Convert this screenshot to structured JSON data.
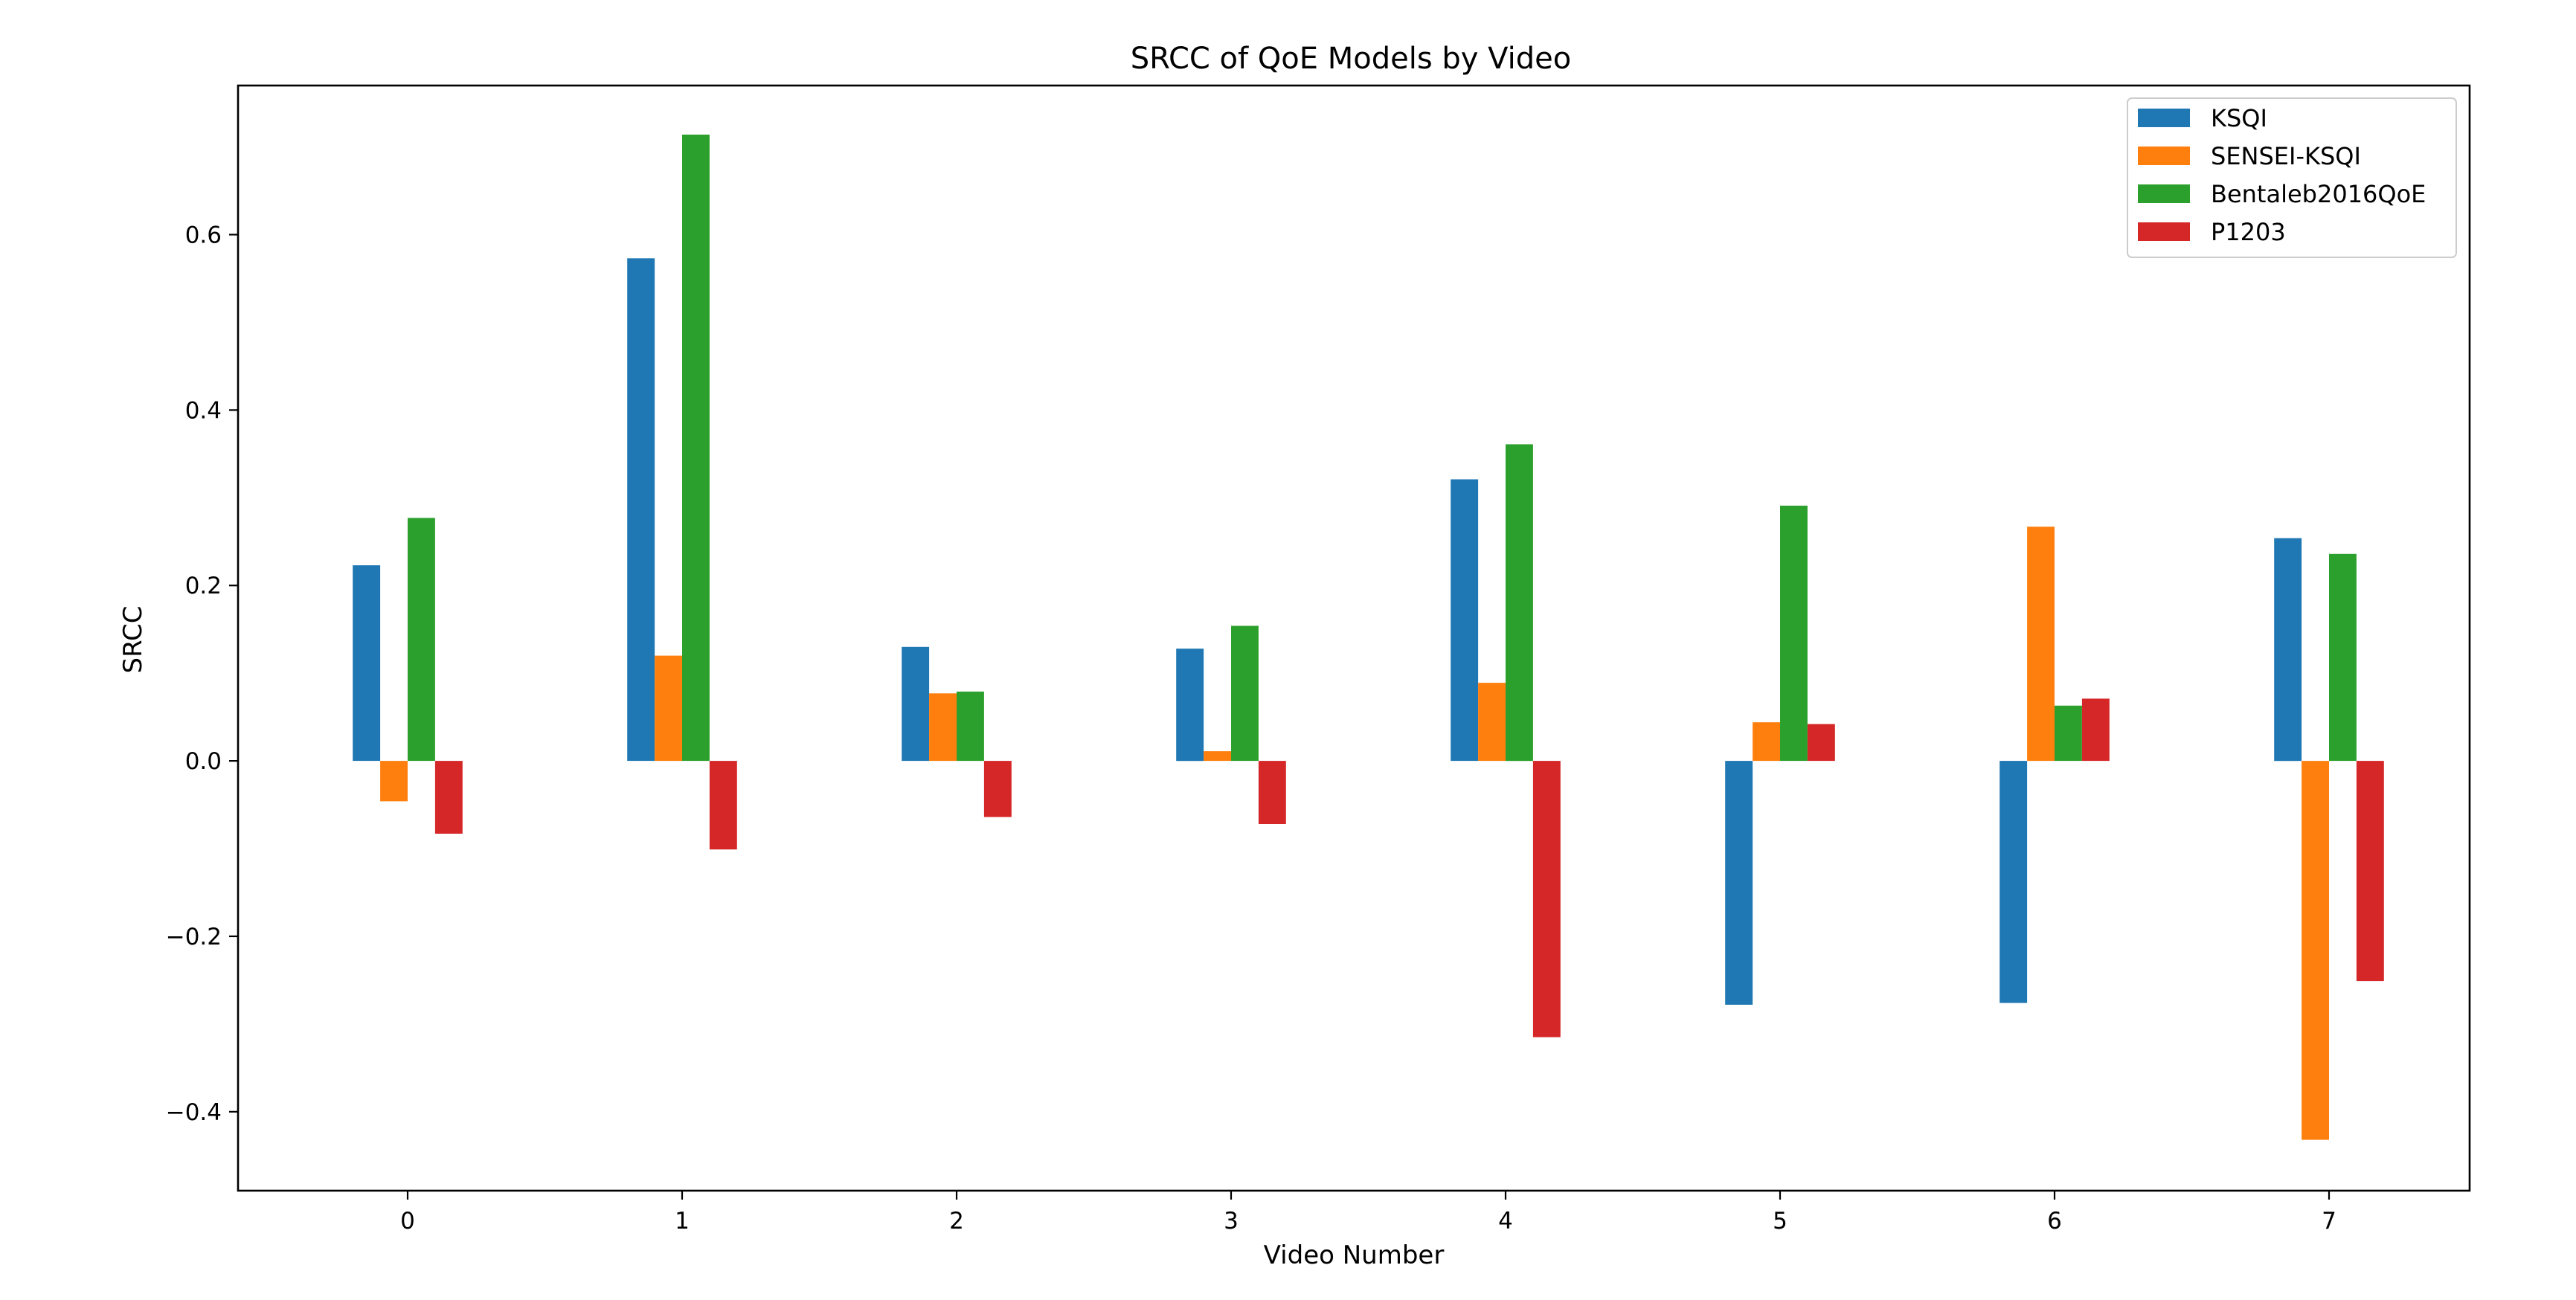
{
  "chart_data": {
    "type": "bar",
    "title": "SRCC of QoE Models by Video",
    "xlabel": "Video Number",
    "ylabel": "SRCC",
    "categories": [
      "0",
      "1",
      "2",
      "3",
      "4",
      "5",
      "6",
      "7"
    ],
    "ylim": [
      -0.49,
      0.77
    ],
    "yticks": [
      -0.4,
      -0.2,
      0.0,
      0.2,
      0.4,
      0.6
    ],
    "ytick_labels": [
      "−0.4",
      "−0.2",
      "0.0",
      "0.2",
      "0.4",
      "0.6"
    ],
    "grid": false,
    "legend_position": "top-right",
    "series": [
      {
        "name": "KSQI",
        "color": "#1f77b4",
        "values": [
          0.223,
          0.573,
          0.13,
          0.128,
          0.321,
          -0.278,
          -0.276,
          0.254
        ]
      },
      {
        "name": "SENSEI-KSQI",
        "color": "#ff7f0e",
        "values": [
          -0.046,
          0.12,
          0.077,
          0.011,
          0.089,
          0.044,
          0.267,
          -0.432
        ]
      },
      {
        "name": "Bentaleb2016QoE",
        "color": "#2ca02c",
        "values": [
          0.277,
          0.714,
          0.079,
          0.154,
          0.361,
          0.291,
          0.063,
          0.236
        ]
      },
      {
        "name": "P1203",
        "color": "#d62728",
        "values": [
          -0.083,
          -0.101,
          -0.064,
          -0.072,
          -0.315,
          0.042,
          0.071,
          -0.251
        ]
      }
    ]
  }
}
